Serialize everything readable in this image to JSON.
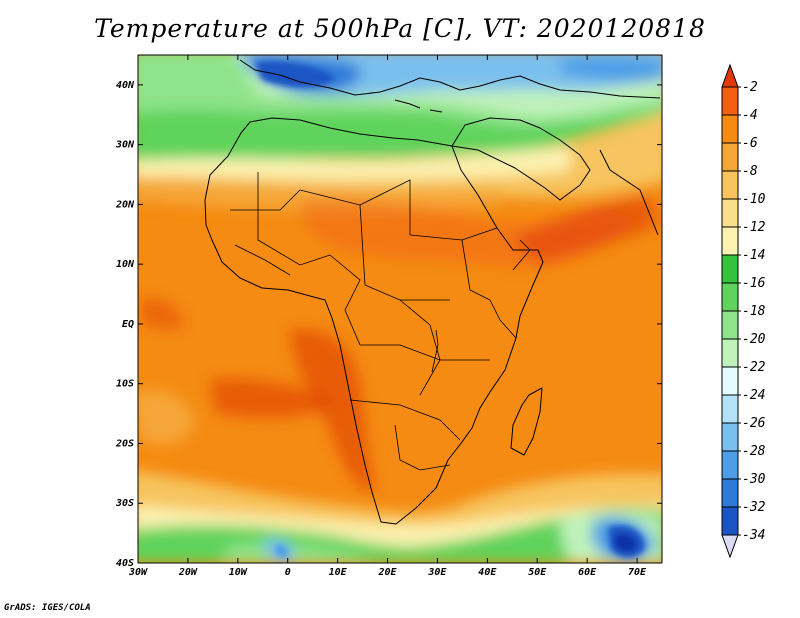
{
  "title": "Temperature at 500hPa [C], VT: 2020120818",
  "variable": "Temperature",
  "level": "500hPa",
  "units": "C",
  "valid_time": "2020120818",
  "credit": "GrADS: IGES/COLA",
  "lon_ticks": [
    "30W",
    "20W",
    "10W",
    "0",
    "10E",
    "20E",
    "30E",
    "40E",
    "50E",
    "60E",
    "70E"
  ],
  "lat_ticks": [
    "40N",
    "30N",
    "20N",
    "10N",
    "EQ",
    "10S",
    "20S",
    "30S",
    "40S"
  ],
  "colorbar": {
    "labels": [
      "-2",
      "-4",
      "-6",
      "-8",
      "-10",
      "-12",
      "-14",
      "-16",
      "-18",
      "-20",
      "-22",
      "-24",
      "-26",
      "-28",
      "-30",
      "-32",
      "-34"
    ],
    "colors": [
      "#e03a0a",
      "#f26012",
      "#f58b12",
      "#f5a637",
      "#f7c45e",
      "#fadf8a",
      "#fcf2b0",
      "#36c23d",
      "#5fd35c",
      "#8fe38a",
      "#c0f2bb",
      "#e6fbff",
      "#b4e3f7",
      "#7ac0ee",
      "#4d9ee6",
      "#2e7ad8",
      "#1b55c4",
      "#0f33a8",
      "#0a1d78",
      "#dcdcf4"
    ]
  }
}
